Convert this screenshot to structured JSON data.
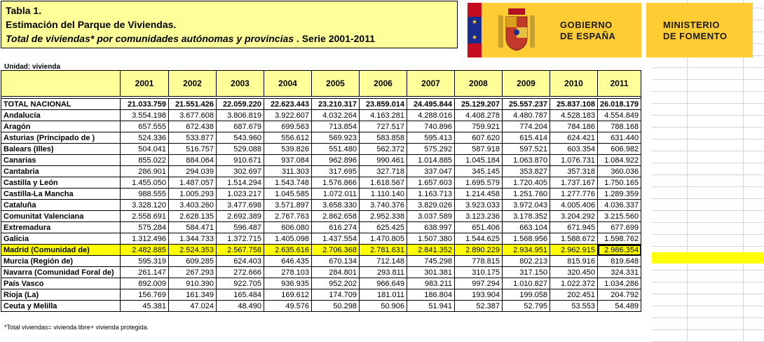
{
  "title": {
    "line1": "Tabla 1.",
    "line2": "Estimación del Parque de Viviendas.",
    "line3": "Total de viviendas* por comunidades autónomas y provincias",
    "line3_tail": " . Serie 2001-2011"
  },
  "logos": {
    "gobierno": "GOBIERNO\nDE ESPAÑA",
    "ministerio": "MINISTERIO\nDE FOMENTO",
    "brand_color": "#ffcc33"
  },
  "unit_label": "Unidad: vivienda",
  "table": {
    "years": [
      "2001",
      "2002",
      "2003",
      "2004",
      "2005",
      "2006",
      "2007",
      "2008",
      "2009",
      "2010",
      "2011"
    ],
    "rows": [
      {
        "name": "TOTAL NACIONAL",
        "values": [
          "21.033.759",
          "21.551.426",
          "22.059.220",
          "22.623.443",
          "23.210.317",
          "23.859.014",
          "24.495.844",
          "25.129.207",
          "25.557.237",
          "25.837.108",
          "26.018.179"
        ]
      },
      {
        "name": "Andalucía",
        "values": [
          "3.554.198",
          "3.677.608",
          "3.806.819",
          "3.922.607",
          "4.032.264",
          "4.163.281",
          "4.288.016",
          "4.408.278",
          "4.480.787",
          "4.528.183",
          "4.554.849"
        ]
      },
      {
        "name": "Aragón",
        "values": [
          "657.555",
          "672.438",
          "687.679",
          "699.563",
          "713.854",
          "727.517",
          "740.896",
          "759.921",
          "774.204",
          "784.186",
          "788.168"
        ]
      },
      {
        "name": "Asturias (Principado de )",
        "values": [
          "524.336",
          "533.877",
          "543.960",
          "556.612",
          "569.923",
          "583.858",
          "595.413",
          "607.620",
          "615.414",
          "624.421",
          "631.440"
        ]
      },
      {
        "name": "Balears (Illes)",
        "values": [
          "504.041",
          "516.757",
          "529.088",
          "539.826",
          "551.480",
          "562.372",
          "575.292",
          "587.918",
          "597.521",
          "603.354",
          "606.982"
        ]
      },
      {
        "name": "Canarias",
        "values": [
          "855.022",
          "884.064",
          "910.671",
          "937.084",
          "962.896",
          "990.461",
          "1.014.885",
          "1.045.184",
          "1.063.870",
          "1.076.731",
          "1.084.922"
        ]
      },
      {
        "name": "Cantabria",
        "values": [
          "286.901",
          "294.039",
          "302.697",
          "311.303",
          "317.695",
          "327.718",
          "337.047",
          "345.145",
          "353.827",
          "357.318",
          "360.036"
        ]
      },
      {
        "name": "Castilla y León",
        "values": [
          "1.455.050",
          "1.487.057",
          "1.514.294",
          "1.543.748",
          "1.576.866",
          "1.618.567",
          "1.657.603",
          "1.695.579",
          "1.720.405",
          "1.737.167",
          "1.750.165"
        ]
      },
      {
        "name": "Castilla-La Mancha",
        "values": [
          "988.555",
          "1.005.293",
          "1.023.217",
          "1.045.585",
          "1.072.011",
          "1.110.140",
          "1.163.713",
          "1.214.458",
          "1.251.760",
          "1.277.776",
          "1.289.359"
        ]
      },
      {
        "name": "Cataluña",
        "values": [
          "3.328.120",
          "3.403.260",
          "3.477.698",
          "3.571.897",
          "3.658.330",
          "3.740.376",
          "3.829.026",
          "3.923.033",
          "3.972.043",
          "4.005.406",
          "4.036.337"
        ]
      },
      {
        "name": "Comunitat Valenciana",
        "values": [
          "2.558.691",
          "2.628.135",
          "2.692.389",
          "2.767.763",
          "2.862.658",
          "2.952.338",
          "3.037.589",
          "3.123.236",
          "3.178.352",
          "3.204.292",
          "3.215.560"
        ]
      },
      {
        "name": "Extremadura",
        "values": [
          "575.284",
          "584.471",
          "596.487",
          "606.080",
          "616.274",
          "625.425",
          "638.997",
          "651.406",
          "663.104",
          "671.945",
          "677.699"
        ]
      },
      {
        "name": "Galicia",
        "values": [
          "1.312.496",
          "1.344.733",
          "1.372.715",
          "1.405.098",
          "1.437.554",
          "1.470.805",
          "1.507.380",
          "1.544.625",
          "1.568.956",
          "1.588.672",
          "1.598.762"
        ]
      },
      {
        "name": "Madrid (Comunidad de)",
        "values": [
          "2.482.885",
          "2.524.353",
          "2.567.758",
          "2.635.616",
          "2.706.368",
          "2.781.631",
          "2.841.352",
          "2.890.229",
          "2.934.951",
          "2.962.915",
          "2.986.354"
        ]
      },
      {
        "name": "Murcia (Región de)",
        "values": [
          "595.319",
          "609.285",
          "624.403",
          "646.435",
          "670.134",
          "712.148",
          "745.298",
          "778.815",
          "802.213",
          "815.916",
          "819.648"
        ]
      },
      {
        "name": "Navarra (Comunidad Foral de)",
        "values": [
          "261.147",
          "267.293",
          "272.666",
          "278.103",
          "284.801",
          "293.811",
          "301.381",
          "310.175",
          "317.150",
          "320.450",
          "324.331"
        ]
      },
      {
        "name": "País Vasco",
        "values": [
          "892.009",
          "910.390",
          "922.705",
          "936.935",
          "952.202",
          "966.649",
          "983.211",
          "997.294",
          "1.010.827",
          "1.022.372",
          "1.034.286"
        ]
      },
      {
        "name": "Rioja (La)",
        "values": [
          "156.769",
          "161.349",
          "165.484",
          "169.612",
          "174.709",
          "181.011",
          "186.804",
          "193.904",
          "199.058",
          "202.451",
          "204.792"
        ]
      },
      {
        "name": "Ceuta y Melilla",
        "values": [
          "45.381",
          "47.024",
          "48.490",
          "49.576",
          "50.298",
          "50.906",
          "51.941",
          "52.387",
          "52.795",
          "53.553",
          "54.489"
        ]
      }
    ],
    "highlight_row": "Madrid (Comunidad de)",
    "highlight_color": "#ffff00",
    "header_color": "#ffff99"
  },
  "footnote": "*Total viviendas= vivienda libre+ vivienda protegida."
}
